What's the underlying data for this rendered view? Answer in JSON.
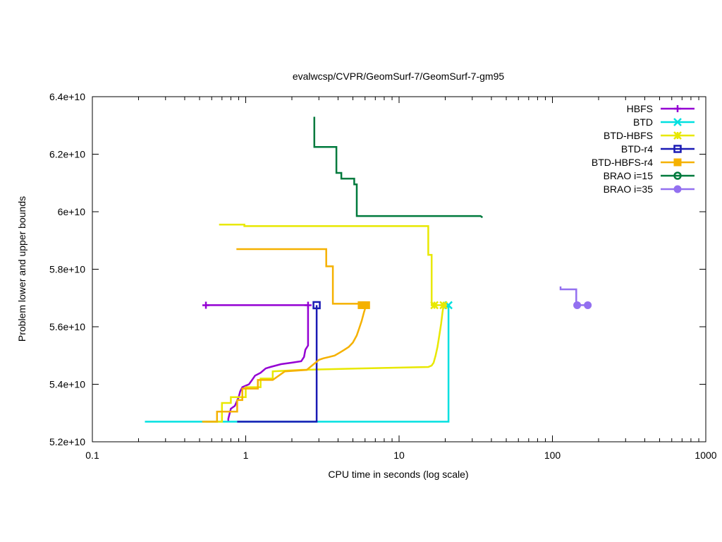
{
  "chart_data": {
    "type": "line",
    "title": "evalwcsp/CVPR/GeomSurf-7/GeomSurf-7-gm95",
    "xlabel": "CPU time in seconds (log scale)",
    "ylabel": "Problem lower and upper bounds",
    "xscale": "log",
    "xlim": [
      0.1,
      1000
    ],
    "ylim": [
      52000000000,
      64000000000
    ],
    "xticks": [
      {
        "value": 0.1,
        "label": "0.1"
      },
      {
        "value": 1,
        "label": "1"
      },
      {
        "value": 10,
        "label": "10"
      },
      {
        "value": 100,
        "label": "100"
      },
      {
        "value": 1000,
        "label": "1000"
      }
    ],
    "yticks": [
      {
        "value": 52000000000,
        "label": "5.2e+10"
      },
      {
        "value": 54000000000,
        "label": "5.4e+10"
      },
      {
        "value": 56000000000,
        "label": "5.6e+10"
      },
      {
        "value": 58000000000,
        "label": "5.8e+10"
      },
      {
        "value": 60000000000,
        "label": "6e+10"
      },
      {
        "value": 62000000000,
        "label": "6.2e+10"
      },
      {
        "value": 64000000000,
        "label": "6.4e+10"
      }
    ],
    "grid": false,
    "legend_position": "top-right",
    "series": [
      {
        "name": "HBFS",
        "color": "#9400d3",
        "marker": "plus",
        "markers": [
          [
            0.55,
            56750000000
          ],
          [
            2.55,
            56750000000
          ]
        ],
        "lines": [
          [
            [
              0.55,
              56750000000
            ],
            [
              2.55,
              56750000000
            ],
            [
              2.55,
              55350000000
            ],
            [
              2.45,
              55200000000
            ],
            [
              2.4,
              54950000000
            ],
            [
              2.3,
              54800000000
            ],
            [
              2.0,
              54750000000
            ],
            [
              1.7,
              54700000000
            ],
            [
              1.45,
              54600000000
            ],
            [
              1.35,
              54550000000
            ],
            [
              1.25,
              54400000000
            ],
            [
              1.15,
              54300000000
            ],
            [
              1.1,
              54150000000
            ],
            [
              1.05,
              54000000000
            ],
            [
              0.95,
              53900000000
            ],
            [
              0.92,
              53750000000
            ],
            [
              0.9,
              53550000000
            ],
            [
              0.85,
              53250000000
            ],
            [
              0.8,
              53150000000
            ],
            [
              0.77,
              52800000000
            ],
            [
              0.77,
              52700000000
            ]
          ]
        ]
      },
      {
        "name": "BTD",
        "color": "#00e0e0",
        "marker": "cross",
        "markers": [
          [
            21,
            56750000000
          ]
        ],
        "lines": [
          [
            [
              0.22,
              52700000000
            ],
            [
              21,
              52700000000
            ],
            [
              21,
              56750000000
            ]
          ]
        ]
      },
      {
        "name": "BTD-HBFS",
        "color": "#e8e800",
        "marker": "star",
        "markers": [
          [
            17,
            56750000000
          ],
          [
            19.5,
            56750000000
          ]
        ],
        "lines": [
          [
            [
              0.67,
              59550000000
            ],
            [
              0.98,
              59550000000
            ],
            [
              0.98,
              59500000000
            ],
            [
              15.5,
              59500000000
            ],
            [
              15.5,
              58500000000
            ],
            [
              16.3,
              58500000000
            ],
            [
              16.3,
              56750000000
            ],
            [
              19.5,
              56750000000
            ]
          ],
          [
            [
              19.5,
              56750000000
            ],
            [
              19.2,
              56500000000
            ],
            [
              18.8,
              56100000000
            ],
            [
              18.3,
              55700000000
            ],
            [
              17.8,
              55300000000
            ],
            [
              17.3,
              55000000000
            ],
            [
              16.8,
              54750000000
            ],
            [
              16.3,
              54650000000
            ],
            [
              15.5,
              54600000000
            ],
            [
              5.5,
              54550000000
            ],
            [
              2.3,
              54500000000
            ],
            [
              1.5,
              54450000000
            ],
            [
              1.5,
              54200000000
            ],
            [
              1.25,
              54200000000
            ],
            [
              1.25,
              53900000000
            ],
            [
              1.0,
              53900000000
            ],
            [
              1.0,
              53550000000
            ],
            [
              0.8,
              53550000000
            ],
            [
              0.8,
              53350000000
            ],
            [
              0.7,
              53350000000
            ],
            [
              0.7,
              52700000000
            ],
            [
              0.55,
              52700000000
            ]
          ]
        ]
      },
      {
        "name": "BTD-r4",
        "color": "#1a1ab4",
        "marker": "square",
        "markers": [
          [
            2.9,
            56750000000
          ]
        ],
        "lines": [
          [
            [
              0.88,
              52700000000
            ],
            [
              2.9,
              52700000000
            ],
            [
              2.9,
              56750000000
            ]
          ]
        ]
      },
      {
        "name": "BTD-HBFS-r4",
        "color": "#f5b100",
        "marker": "square-filled",
        "markers": [
          [
            5.7,
            56750000000
          ],
          [
            6.1,
            56750000000
          ]
        ],
        "lines": [
          [
            [
              0.87,
              58700000000
            ],
            [
              3.35,
              58700000000
            ],
            [
              3.35,
              58100000000
            ],
            [
              3.7,
              58100000000
            ],
            [
              3.7,
              56800000000
            ],
            [
              5.7,
              56800000000
            ],
            [
              6.1,
              56750000000
            ]
          ],
          [
            [
              6.1,
              56750000000
            ],
            [
              5.9,
              56500000000
            ],
            [
              5.7,
              56200000000
            ],
            [
              5.5,
              55950000000
            ],
            [
              5.3,
              55700000000
            ],
            [
              5.0,
              55450000000
            ],
            [
              4.7,
              55300000000
            ],
            [
              4.4,
              55200000000
            ],
            [
              4.1,
              55100000000
            ],
            [
              3.8,
              55000000000
            ],
            [
              3.5,
              54950000000
            ],
            [
              3.2,
              54900000000
            ],
            [
              3.0,
              54850000000
            ],
            [
              2.5,
              54500000000
            ],
            [
              1.8,
              54450000000
            ],
            [
              1.5,
              54150000000
            ],
            [
              1.2,
              54150000000
            ],
            [
              1.2,
              53850000000
            ],
            [
              0.95,
              53850000000
            ],
            [
              0.95,
              53450000000
            ],
            [
              0.88,
              53450000000
            ],
            [
              0.88,
              53050000000
            ],
            [
              0.65,
              53050000000
            ],
            [
              0.65,
              52700000000
            ],
            [
              0.52,
              52700000000
            ]
          ]
        ]
      },
      {
        "name": "BRAO i=15",
        "color": "#007a3d",
        "marker": "circle",
        "markers": [],
        "lines": [
          [
            [
              2.8,
              63300000000
            ],
            [
              2.8,
              62250000000
            ],
            [
              3.9,
              62250000000
            ],
            [
              3.9,
              61350000000
            ],
            [
              4.2,
              61350000000
            ],
            [
              4.2,
              61150000000
            ],
            [
              5.1,
              61150000000
            ],
            [
              5.1,
              60950000000
            ],
            [
              5.3,
              60950000000
            ],
            [
              5.3,
              59850000000
            ],
            [
              34,
              59850000000
            ],
            [
              35,
              59800000000
            ]
          ]
        ]
      },
      {
        "name": "BRAO i=35",
        "color": "#9370f0",
        "marker": "circle-filled",
        "markers": [
          [
            145,
            56750000000
          ],
          [
            170,
            56750000000
          ]
        ],
        "lines": [
          [
            [
              113,
              57400000000
            ],
            [
              113,
              57300000000
            ],
            [
              143,
              57300000000
            ],
            [
              143,
              56750000000
            ],
            [
              170,
              56750000000
            ]
          ]
        ]
      }
    ]
  }
}
